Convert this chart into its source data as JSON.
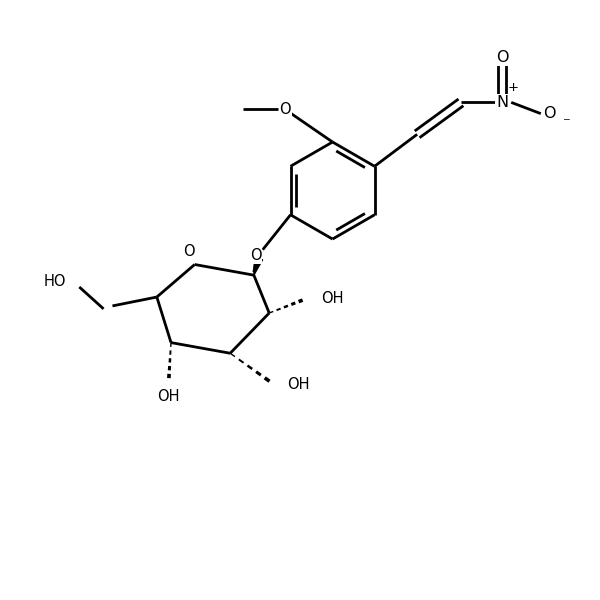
{
  "background_color": "#ffffff",
  "line_color": "#000000",
  "line_width": 2.0,
  "figsize": [
    6.0,
    6.0
  ],
  "dpi": 100,
  "font_size": 10.5,
  "label_color": "#000000",
  "xlim": [
    0,
    10
  ],
  "ylim": [
    0,
    10
  ]
}
